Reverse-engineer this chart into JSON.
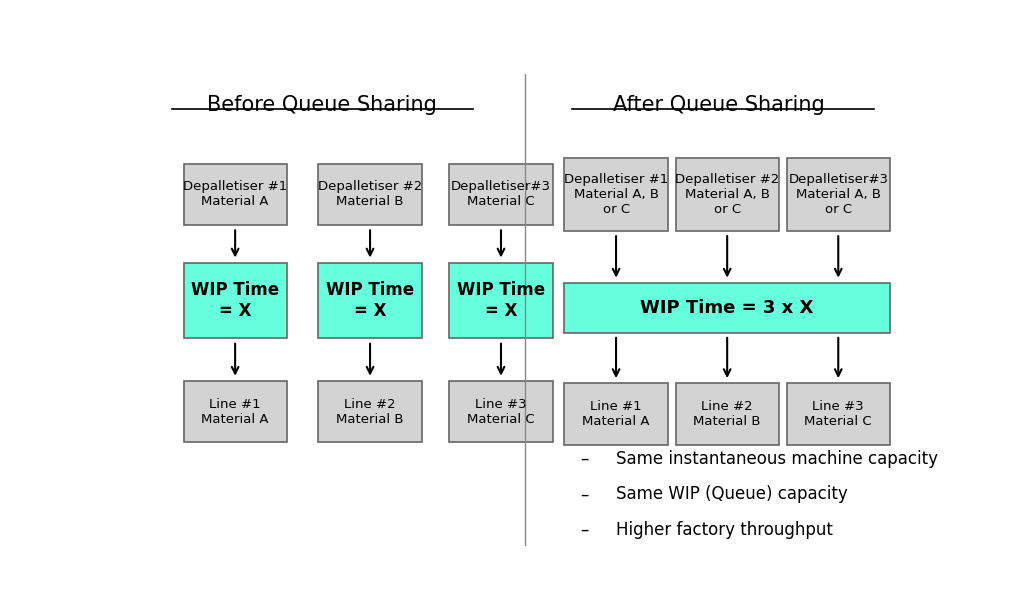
{
  "title_left": "Before Queue Sharing",
  "title_right": "After Queue Sharing",
  "bg_color": "#ffffff",
  "box_gray": "#d3d3d3",
  "box_cyan": "#66ffdd",
  "text_color": "#000000",
  "before": {
    "columns": [
      0.135,
      0.305,
      0.47
    ],
    "top_boxes": [
      "Depalletiser #1\nMaterial A",
      "Depalletiser #2\nMaterial B",
      "Depalletiser#3\nMaterial C"
    ],
    "wip_boxes": [
      "WIP Time\n= X",
      "WIP Time\n= X",
      "WIP Time\n= X"
    ],
    "bottom_boxes": [
      "Line #1\nMaterial A",
      "Line #2\nMaterial B",
      "Line #3\nMaterial C"
    ]
  },
  "after": {
    "columns": [
      0.615,
      0.755,
      0.895
    ],
    "top_boxes": [
      "Depalletiser #1\nMaterial A, B\nor C",
      "Depalletiser #2\nMaterial A, B\nor C",
      "Depalletiser#3\nMaterial A, B\nor C"
    ],
    "wip_text": "WIP Time = 3 x X",
    "bottom_boxes": [
      "Line #1\nMaterial A",
      "Line #2\nMaterial B",
      "Line #3\nMaterial C"
    ]
  },
  "bullet_points": [
    "Same instantaneous machine capacity",
    "Same WIP (Queue) capacity",
    "Higher factory throughput"
  ]
}
